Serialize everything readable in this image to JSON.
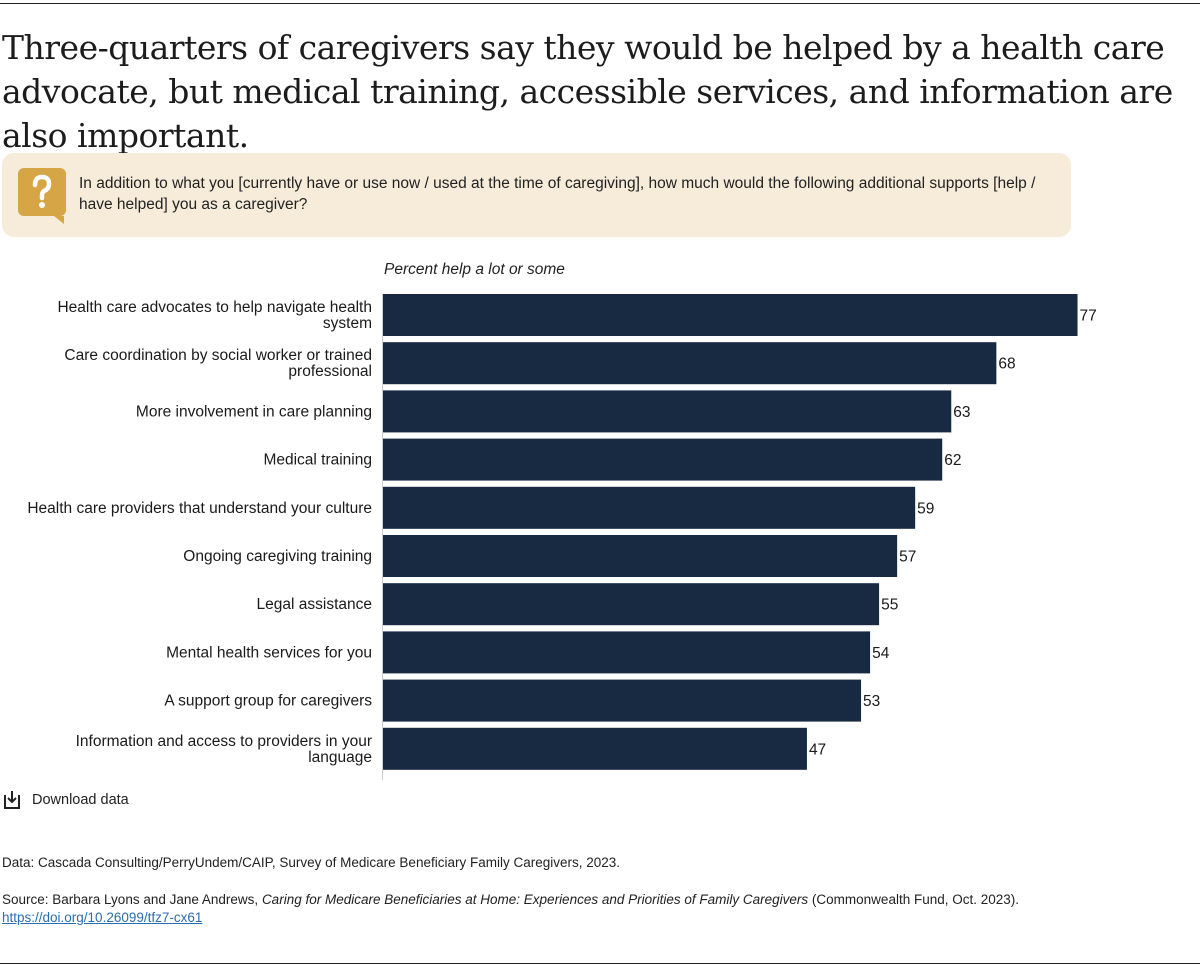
{
  "title": "Three-quarters of caregivers say they would be helped by a health care advocate, but medical training, accessible services, and information are also important.",
  "question": {
    "icon": "question-bubble-icon",
    "text": "In addition to what you [currently have or use now / used at the time of caregiving], how much would the following additional supports [help / have helped] you as a caregiver?"
  },
  "download_label": "Download data",
  "footnotes": {
    "data": "Data: Cascada Consulting/PerryUndem/CAIP, Survey of Medicare Beneficiary Family Caregivers, 2023.",
    "source_prefix": "Source: Barbara Lyons and Jane Andrews,",
    "source_title": "Caring for Medicare Beneficiaries at Home: Experiences and Priorities of Family Caregivers",
    "source_suffix": "(Commonwealth Fund, Oct. 2023).",
    "doi": "https://doi.org/10.26099/tfz7-cx61"
  },
  "colors": {
    "bar": "#172a42",
    "box": "#f6ecd9",
    "icon": "#d6a545"
  },
  "chart_data": {
    "type": "bar",
    "orientation": "horizontal",
    "xlabel": "Percent help a lot or some",
    "xlim": [
      0,
      100
    ],
    "grid": false,
    "categories": [
      "Health care advocates to help navigate health system",
      "Care coordination by social worker or trained professional",
      "More involvement in care planning",
      "Medical training",
      "Health care providers that understand your culture",
      "Ongoing caregiving training",
      "Legal assistance",
      "Mental health services for you",
      "A support group for caregivers",
      "Information and access to providers in your language"
    ],
    "label_lines": [
      [
        "Health care advocates to help navigate health",
        "system"
      ],
      [
        "Care coordination by social worker or trained",
        "professional"
      ],
      [
        "More involvement in care planning"
      ],
      [
        "Medical training"
      ],
      [
        "Health care providers that understand your culture"
      ],
      [
        "Ongoing caregiving training"
      ],
      [
        "Legal assistance"
      ],
      [
        "Mental health services for you"
      ],
      [
        "A support group for caregivers"
      ],
      [
        "Information and access to providers in your",
        "language"
      ]
    ],
    "values": [
      77,
      68,
      63,
      62,
      59,
      57,
      55,
      54,
      53,
      47
    ]
  }
}
